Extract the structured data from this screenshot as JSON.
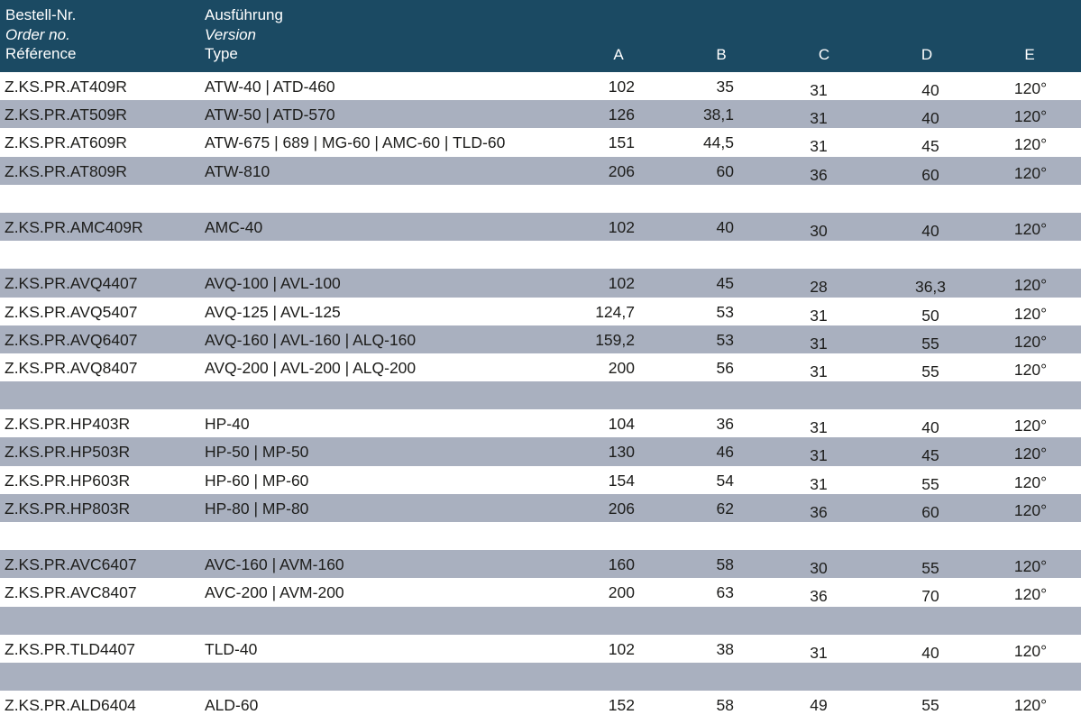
{
  "header": {
    "col1": {
      "de": "Bestell-Nr.",
      "en": "Order no.",
      "fr": "Référence"
    },
    "col2": {
      "de": "Ausführung",
      "en": "Version",
      "fr": "Type"
    },
    "letters": [
      "A",
      "B",
      "C",
      "D",
      "E"
    ]
  },
  "colors": {
    "header_bg": "#1b4a63",
    "row_grey": "#a9b0bf",
    "row_white": "#ffffff"
  },
  "rows": [
    {
      "ref": "Z.KS.PR.AT409R",
      "type": "ATW-40 | ATD-460",
      "a": "102",
      "b": "35",
      "c": "31",
      "d": "40",
      "e": "120°",
      "shade": "white"
    },
    {
      "ref": "Z.KS.PR.AT509R",
      "type": "ATW-50 | ATD-570",
      "a": "126",
      "b": "38,1",
      "c": "31",
      "d": "40",
      "e": "120°",
      "shade": "grey"
    },
    {
      "ref": "Z.KS.PR.AT609R",
      "type": "ATW-675 | 689 | MG-60 | AMC-60 | TLD-60",
      "a": "151",
      "b": "44,5",
      "c": "31",
      "d": "45",
      "e": "120°",
      "shade": "white"
    },
    {
      "ref": "Z.KS.PR.AT809R",
      "type": "ATW-810",
      "a": "206",
      "b": "60",
      "c": "36",
      "d": "60",
      "e": "120°",
      "shade": "grey"
    },
    {
      "ref": "",
      "type": "",
      "a": "",
      "b": "",
      "c": "",
      "d": "",
      "e": "",
      "shade": "white"
    },
    {
      "ref": "Z.KS.PR.AMC409R",
      "type": "AMC-40",
      "a": "102",
      "b": "40",
      "c": "30",
      "d": "40",
      "e": "120°",
      "shade": "grey"
    },
    {
      "ref": "",
      "type": "",
      "a": "",
      "b": "",
      "c": "",
      "d": "",
      "e": "",
      "shade": "white"
    },
    {
      "ref": "Z.KS.PR.AVQ4407",
      "type": "AVQ-100 | AVL-100",
      "a": "102",
      "b": "45",
      "c": "28",
      "d": "36,3",
      "e": "120°",
      "shade": "grey"
    },
    {
      "ref": "Z.KS.PR.AVQ5407",
      "type": "AVQ-125 | AVL-125",
      "a": "124,7",
      "b": "53",
      "c": "31",
      "d": "50",
      "e": "120°",
      "shade": "white"
    },
    {
      "ref": "Z.KS.PR.AVQ6407",
      "type": "AVQ-160 | AVL-160 | ALQ-160",
      "a": "159,2",
      "b": "53",
      "c": "31",
      "d": "55",
      "e": "120°",
      "shade": "grey"
    },
    {
      "ref": "Z.KS.PR.AVQ8407",
      "type": "AVQ-200 | AVL-200 | ALQ-200",
      "a": "200",
      "b": "56",
      "c": "31",
      "d": "55",
      "e": "120°",
      "shade": "white"
    },
    {
      "ref": "",
      "type": "",
      "a": "",
      "b": "",
      "c": "",
      "d": "",
      "e": "",
      "shade": "grey"
    },
    {
      "ref": "Z.KS.PR.HP403R",
      "type": "HP-40",
      "a": "104",
      "b": "36",
      "c": "31",
      "d": "40",
      "e": "120°",
      "shade": "white"
    },
    {
      "ref": "Z.KS.PR.HP503R",
      "type": "HP-50 | MP-50",
      "a": "130",
      "b": "46",
      "c": "31",
      "d": "45",
      "e": "120°",
      "shade": "grey"
    },
    {
      "ref": "Z.KS.PR.HP603R",
      "type": "HP-60 | MP-60",
      "a": "154",
      "b": "54",
      "c": "31",
      "d": "55",
      "e": "120°",
      "shade": "white"
    },
    {
      "ref": "Z.KS.PR.HP803R",
      "type": "HP-80 | MP-80",
      "a": "206",
      "b": "62",
      "c": "36",
      "d": "60",
      "e": "120°",
      "shade": "grey"
    },
    {
      "ref": "",
      "type": "",
      "a": "",
      "b": "",
      "c": "",
      "d": "",
      "e": "",
      "shade": "white"
    },
    {
      "ref": "Z.KS.PR.AVC6407",
      "type": "AVC-160 | AVM-160",
      "a": "160",
      "b": "58",
      "c": "30",
      "d": "55",
      "e": "120°",
      "shade": "grey"
    },
    {
      "ref": "Z.KS.PR.AVC8407",
      "type": "AVC-200 | AVM-200",
      "a": "200",
      "b": "63",
      "c": "36",
      "d": "70",
      "e": "120°",
      "shade": "white"
    },
    {
      "ref": "",
      "type": "",
      "a": "",
      "b": "",
      "c": "",
      "d": "",
      "e": "",
      "shade": "grey"
    },
    {
      "ref": "Z.KS.PR.TLD4407",
      "type": "TLD-40",
      "a": "102",
      "b": "38",
      "c": "31",
      "d": "40",
      "e": "120°",
      "shade": "white"
    },
    {
      "ref": "",
      "type": "",
      "a": "",
      "b": "",
      "c": "",
      "d": "",
      "e": "",
      "shade": "grey"
    },
    {
      "ref": "Z.KS.PR.ALD6404",
      "type": "ALD-60",
      "a": "152",
      "b": "58",
      "c": "49",
      "d": "55",
      "e": "120°",
      "shade": "white"
    }
  ]
}
